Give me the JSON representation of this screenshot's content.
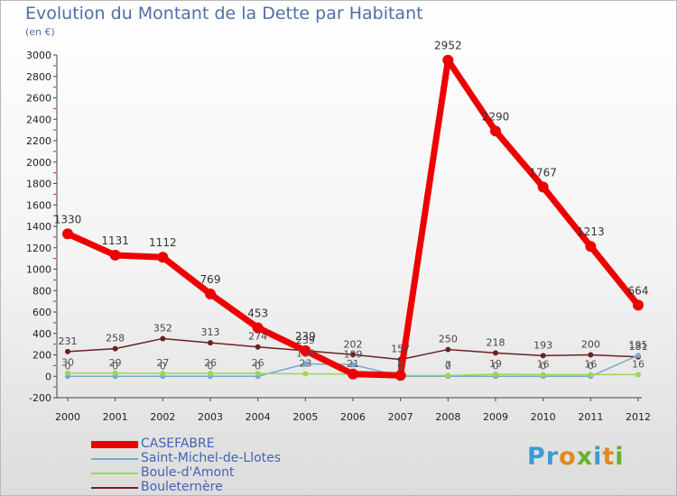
{
  "title": "Evolution du Montant de la Dette par Habitant",
  "subtitle": "(en €)",
  "logo_text": "Proxiti",
  "colors": {
    "casefabre": "#ee0000",
    "saint_michel": "#77a7d3",
    "boule": "#99d855",
    "bouleternere": "#6b2121",
    "axis_text": "#222222",
    "label_text": "#333333"
  },
  "chart_data": {
    "type": "line",
    "title": "Evolution du Montant de la Dette par Habitant",
    "ylabel": "(en €)",
    "xlabel": "",
    "categories": [
      "2000",
      "2001",
      "2002",
      "2003",
      "2004",
      "2005",
      "2006",
      "2007",
      "2008",
      "2009",
      "2010",
      "2011",
      "2012"
    ],
    "ylim": [
      -200,
      3000
    ],
    "yticks": [
      "-200",
      "0",
      "200",
      "400",
      "600",
      "800",
      "1000",
      "1200",
      "1400",
      "1600",
      "1800",
      "2000",
      "2200",
      "2400",
      "2600",
      "2800",
      "3000"
    ],
    "grid": false,
    "legend_position": "bottom-left",
    "series": [
      {
        "name": "CASEFABRE",
        "values": [
          1330,
          1131,
          1112,
          769,
          453,
          239,
          21,
          8,
          2952,
          2290,
          1767,
          1213,
          664
        ]
      },
      {
        "name": "Saint-Michel-de-Llotes",
        "values": [
          0,
          0,
          0,
          0,
          0,
          116,
          109,
          0,
          0,
          0,
          0,
          0,
          195
        ]
      },
      {
        "name": "Boule-d'Amont",
        "values": [
          30,
          29,
          27,
          26,
          26,
          23,
          21,
          8,
          7,
          19,
          16,
          16,
          16
        ]
      },
      {
        "name": "Bouleternère",
        "values": [
          231,
          258,
          352,
          313,
          274,
          239,
          202,
          157,
          250,
          218,
          193,
          200,
          181
        ]
      }
    ],
    "labels": [
      [
        "1330",
        "1131",
        "1112",
        "769",
        "453",
        "239",
        "",
        "",
        "2952",
        "2290",
        "1767",
        "1213",
        "664"
      ],
      [
        "0",
        "0",
        "0",
        "0",
        "0",
        "116",
        "109",
        "0",
        "0",
        "0",
        "0",
        "0",
        "195"
      ],
      [
        "30",
        "29",
        "27",
        "26",
        "26",
        "23",
        "21",
        "8",
        "7",
        "19",
        "16",
        "16",
        "16"
      ],
      [
        "231",
        "258",
        "352",
        "313",
        "274",
        "239",
        "202",
        "157",
        "250",
        "218",
        "193",
        "200",
        "181"
      ]
    ]
  },
  "legend": [
    {
      "label": "CASEFABRE"
    },
    {
      "label": "Saint-Michel-de-Llotes"
    },
    {
      "label": "Boule-d'Amont"
    },
    {
      "label": "Bouleternère"
    }
  ]
}
